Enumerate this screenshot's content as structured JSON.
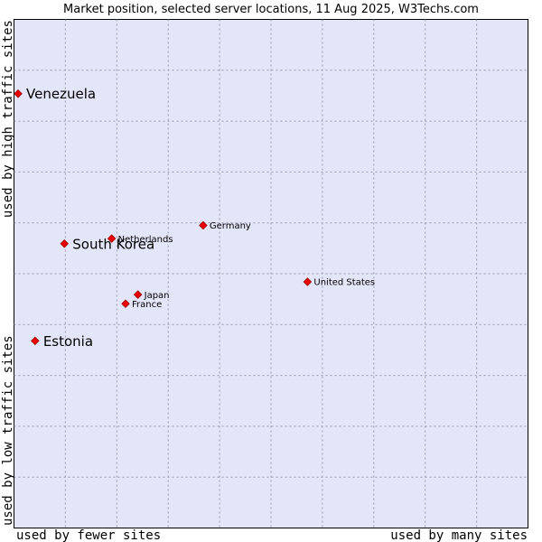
{
  "chart_data": {
    "type": "scatter",
    "title": "Market position, selected server locations, 11 Aug 2025, W3Techs.com",
    "xlabel_left": "used by fewer sites",
    "xlabel_right": "used by many sites",
    "ylabel_bottom": "used by low traffic sites",
    "ylabel_top": "used by high traffic sites",
    "xlim": [
      0,
      100
    ],
    "ylim": [
      0,
      100
    ],
    "grid": true,
    "points": [
      {
        "name": "Venezuela",
        "x": 0.8,
        "y": 85.4,
        "highlight": true
      },
      {
        "name": "South Korea",
        "x": 9.8,
        "y": 55.9,
        "highlight": true
      },
      {
        "name": "Estonia",
        "x": 4.1,
        "y": 36.8,
        "highlight": true
      },
      {
        "name": "Netherlands",
        "x": 19.0,
        "y": 56.9,
        "highlight": false
      },
      {
        "name": "Germany",
        "x": 36.8,
        "y": 59.5,
        "highlight": false
      },
      {
        "name": "United States",
        "x": 57.1,
        "y": 48.4,
        "highlight": false
      },
      {
        "name": "Japan",
        "x": 24.1,
        "y": 45.9,
        "highlight": false
      },
      {
        "name": "France",
        "x": 21.7,
        "y": 44.1,
        "highlight": false
      }
    ]
  }
}
